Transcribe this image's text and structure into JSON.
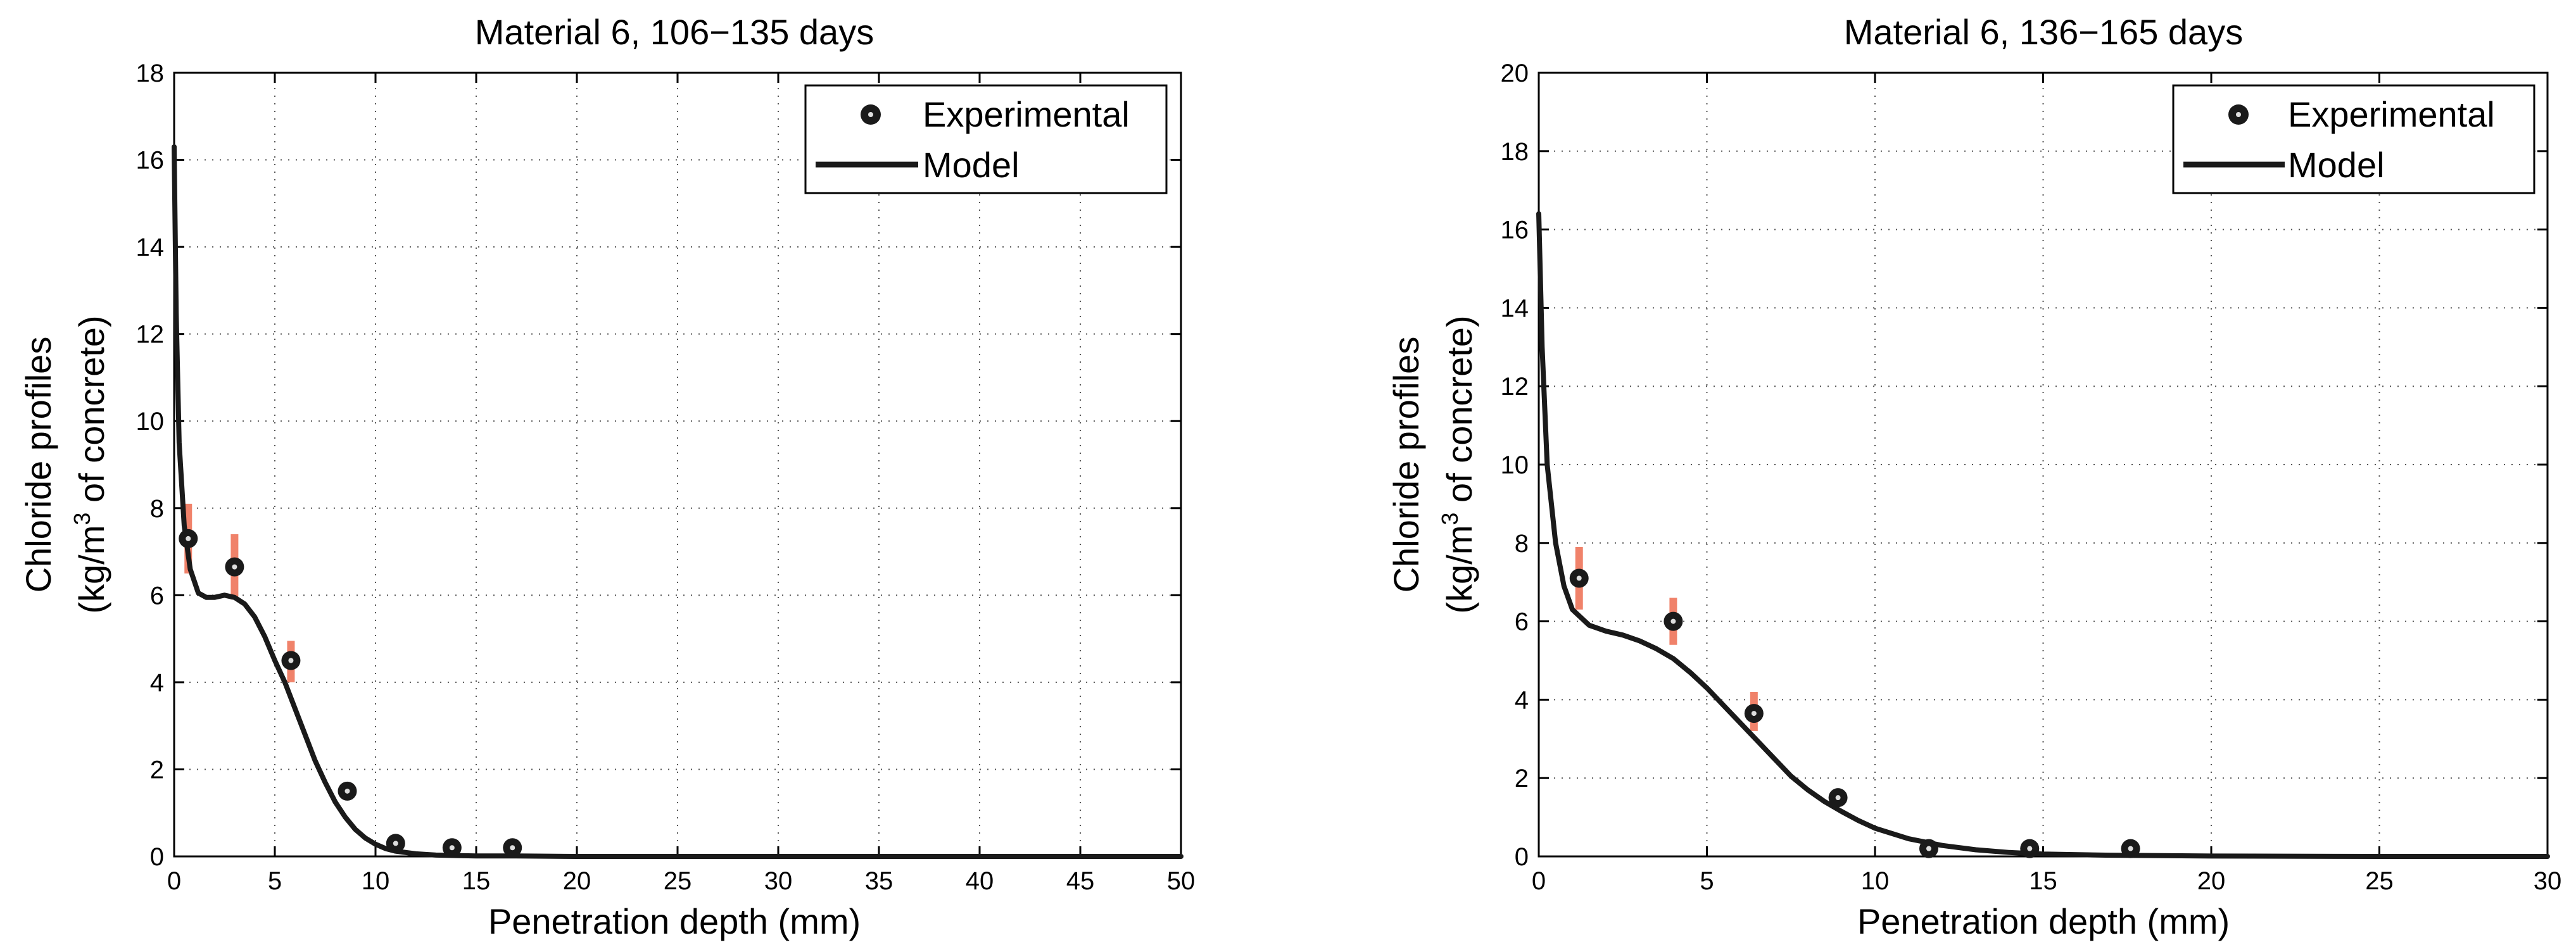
{
  "chart_data": [
    {
      "type": "line",
      "title": "Material 6, 106−135 days",
      "xlabel": "Penetration depth (mm)",
      "ylabel_line1": "Chloride profiles",
      "ylabel_line2_pre": "(kg/m",
      "ylabel_line2_sup": "3",
      "ylabel_line2_post": " of concrete)",
      "xlim": [
        0,
        50
      ],
      "ylim": [
        0,
        18
      ],
      "xticks": [
        0,
        5,
        10,
        15,
        20,
        25,
        30,
        35,
        40,
        45,
        50
      ],
      "yticks": [
        0,
        2,
        4,
        6,
        8,
        10,
        12,
        14,
        16,
        18
      ],
      "grid": true,
      "legend_position": "top-right",
      "colors": {
        "line": "#1a1a1a",
        "marker": "#1a1a1a",
        "error_bar": "#f0826a"
      },
      "series": [
        {
          "name": "Experimental",
          "kind": "scatter",
          "x": [
            0.7,
            3.0,
            5.8,
            8.6,
            11.0,
            13.8,
            16.8
          ],
          "y": [
            7.3,
            6.65,
            4.5,
            1.5,
            0.3,
            0.2,
            0.2
          ],
          "err_low": [
            6.5,
            5.9,
            4.0,
            1.3,
            0.25,
            0.15,
            0.15
          ],
          "err_high": [
            8.1,
            7.4,
            4.95,
            1.7,
            0.35,
            0.25,
            0.25
          ]
        },
        {
          "name": "Model",
          "kind": "line",
          "x": [
            0,
            0.1,
            0.25,
            0.5,
            0.8,
            1.2,
            1.6,
            2.0,
            2.5,
            3.0,
            3.5,
            4.0,
            4.5,
            5.0,
            5.5,
            6.0,
            6.5,
            7.0,
            7.5,
            8.0,
            8.5,
            9.0,
            9.5,
            10.0,
            10.5,
            11.0,
            12.0,
            13.0,
            14.0,
            15.0,
            17.0,
            20.0,
            30.0,
            40.0,
            50.0
          ],
          "y": [
            16.3,
            12.5,
            9.5,
            7.6,
            6.6,
            6.05,
            5.95,
            5.95,
            6.0,
            5.95,
            5.8,
            5.5,
            5.05,
            4.5,
            4.0,
            3.4,
            2.8,
            2.2,
            1.7,
            1.25,
            0.9,
            0.62,
            0.42,
            0.28,
            0.18,
            0.12,
            0.06,
            0.03,
            0.02,
            0.01,
            0.01,
            0.0,
            0.0,
            0.0,
            0.0
          ]
        }
      ]
    },
    {
      "type": "line",
      "title": "Material 6, 136−165 days",
      "xlabel": "Penetration depth (mm)",
      "ylabel_line1": "Chloride profiles",
      "ylabel_line2_pre": "(kg/m",
      "ylabel_line2_sup": "3",
      "ylabel_line2_post": " of concrete)",
      "xlim": [
        0,
        30
      ],
      "ylim": [
        0,
        20
      ],
      "xticks": [
        0,
        5,
        10,
        15,
        20,
        25,
        30
      ],
      "yticks": [
        0,
        2,
        4,
        6,
        8,
        10,
        12,
        14,
        16,
        18,
        20
      ],
      "grid": true,
      "legend_position": "top-right",
      "colors": {
        "line": "#1a1a1a",
        "marker": "#1a1a1a",
        "error_bar": "#f0826a"
      },
      "series": [
        {
          "name": "Experimental",
          "kind": "scatter",
          "x": [
            1.2,
            4.0,
            6.4,
            8.9,
            11.6,
            14.6,
            17.6
          ],
          "y": [
            7.1,
            6.0,
            3.65,
            1.5,
            0.2,
            0.2,
            0.2
          ],
          "err_low": [
            6.3,
            5.4,
            3.2,
            1.35,
            0.15,
            0.15,
            0.15
          ],
          "err_high": [
            7.9,
            6.6,
            4.2,
            1.65,
            0.25,
            0.25,
            0.25
          ]
        },
        {
          "name": "Model",
          "kind": "line",
          "x": [
            0,
            0.1,
            0.25,
            0.5,
            0.75,
            1.0,
            1.5,
            2.0,
            2.5,
            3.0,
            3.5,
            4.0,
            4.5,
            5.0,
            5.5,
            6.0,
            6.5,
            7.0,
            7.5,
            8.0,
            8.5,
            9.0,
            9.5,
            10.0,
            11.0,
            12.0,
            13.0,
            14.0,
            15.0,
            17.0,
            20.0,
            25.0,
            30.0
          ],
          "y": [
            16.4,
            13.0,
            10.0,
            8.0,
            6.9,
            6.3,
            5.9,
            5.75,
            5.65,
            5.5,
            5.3,
            5.05,
            4.7,
            4.3,
            3.85,
            3.4,
            2.95,
            2.5,
            2.05,
            1.7,
            1.4,
            1.15,
            0.92,
            0.72,
            0.45,
            0.28,
            0.17,
            0.1,
            0.06,
            0.03,
            0.01,
            0.0,
            0.0
          ]
        }
      ]
    }
  ]
}
